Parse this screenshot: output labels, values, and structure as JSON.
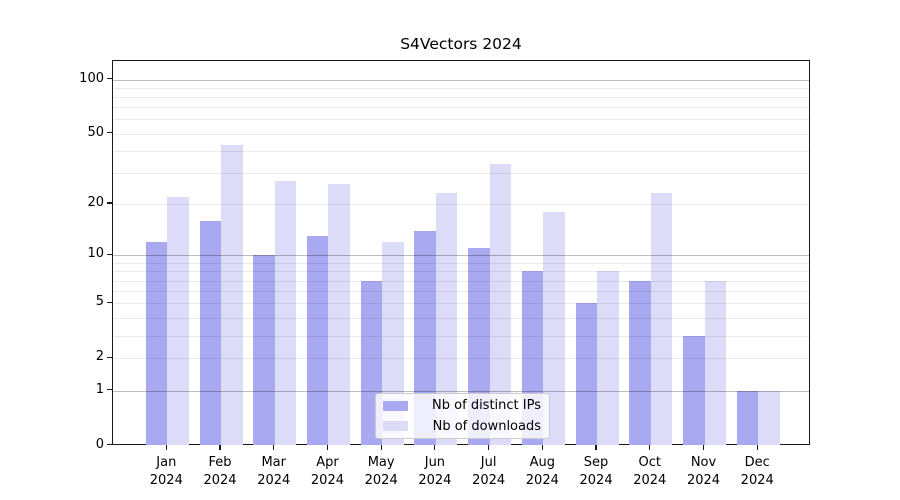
{
  "chart_data": {
    "type": "bar",
    "title": "S4Vectors 2024",
    "categories": [
      "Jan 2024",
      "Feb 2024",
      "Mar 2024",
      "Apr 2024",
      "May 2024",
      "Jun 2024",
      "Jul 2024",
      "Aug 2024",
      "Sep 2024",
      "Oct 2024",
      "Nov 2024",
      "Dec 2024"
    ],
    "series": [
      {
        "name": "Nb of distinct IPs",
        "color": "#a9a9f2",
        "values": [
          12,
          16,
          10,
          13,
          7,
          14,
          11,
          8,
          5,
          7,
          3,
          1
        ]
      },
      {
        "name": "Nb of downloads",
        "color": "#dcdcf9",
        "values": [
          22,
          43,
          27,
          26,
          12,
          23,
          34,
          18,
          8,
          23,
          7,
          1
        ]
      }
    ],
    "y_axis": {
      "scale": "log1p",
      "tick_values": [
        0,
        1,
        2,
        5,
        10,
        20,
        50,
        100
      ],
      "tick_labels": [
        "0",
        "1",
        "2",
        "5",
        "10",
        "20",
        "50",
        "100"
      ],
      "range": [
        0,
        127
      ],
      "major_gridlines": [
        1,
        10,
        100
      ],
      "minor_gridlines": [
        2,
        3,
        4,
        5,
        6,
        7,
        8,
        9,
        20,
        30,
        40,
        50,
        60,
        70,
        80,
        90
      ]
    },
    "x_axis": {
      "label_year": "2024"
    },
    "legend": {
      "position": "lower center",
      "entries": [
        "Nb of distinct IPs",
        "Nb of downloads"
      ]
    },
    "grid": "on",
    "background": "#ffffff"
  }
}
